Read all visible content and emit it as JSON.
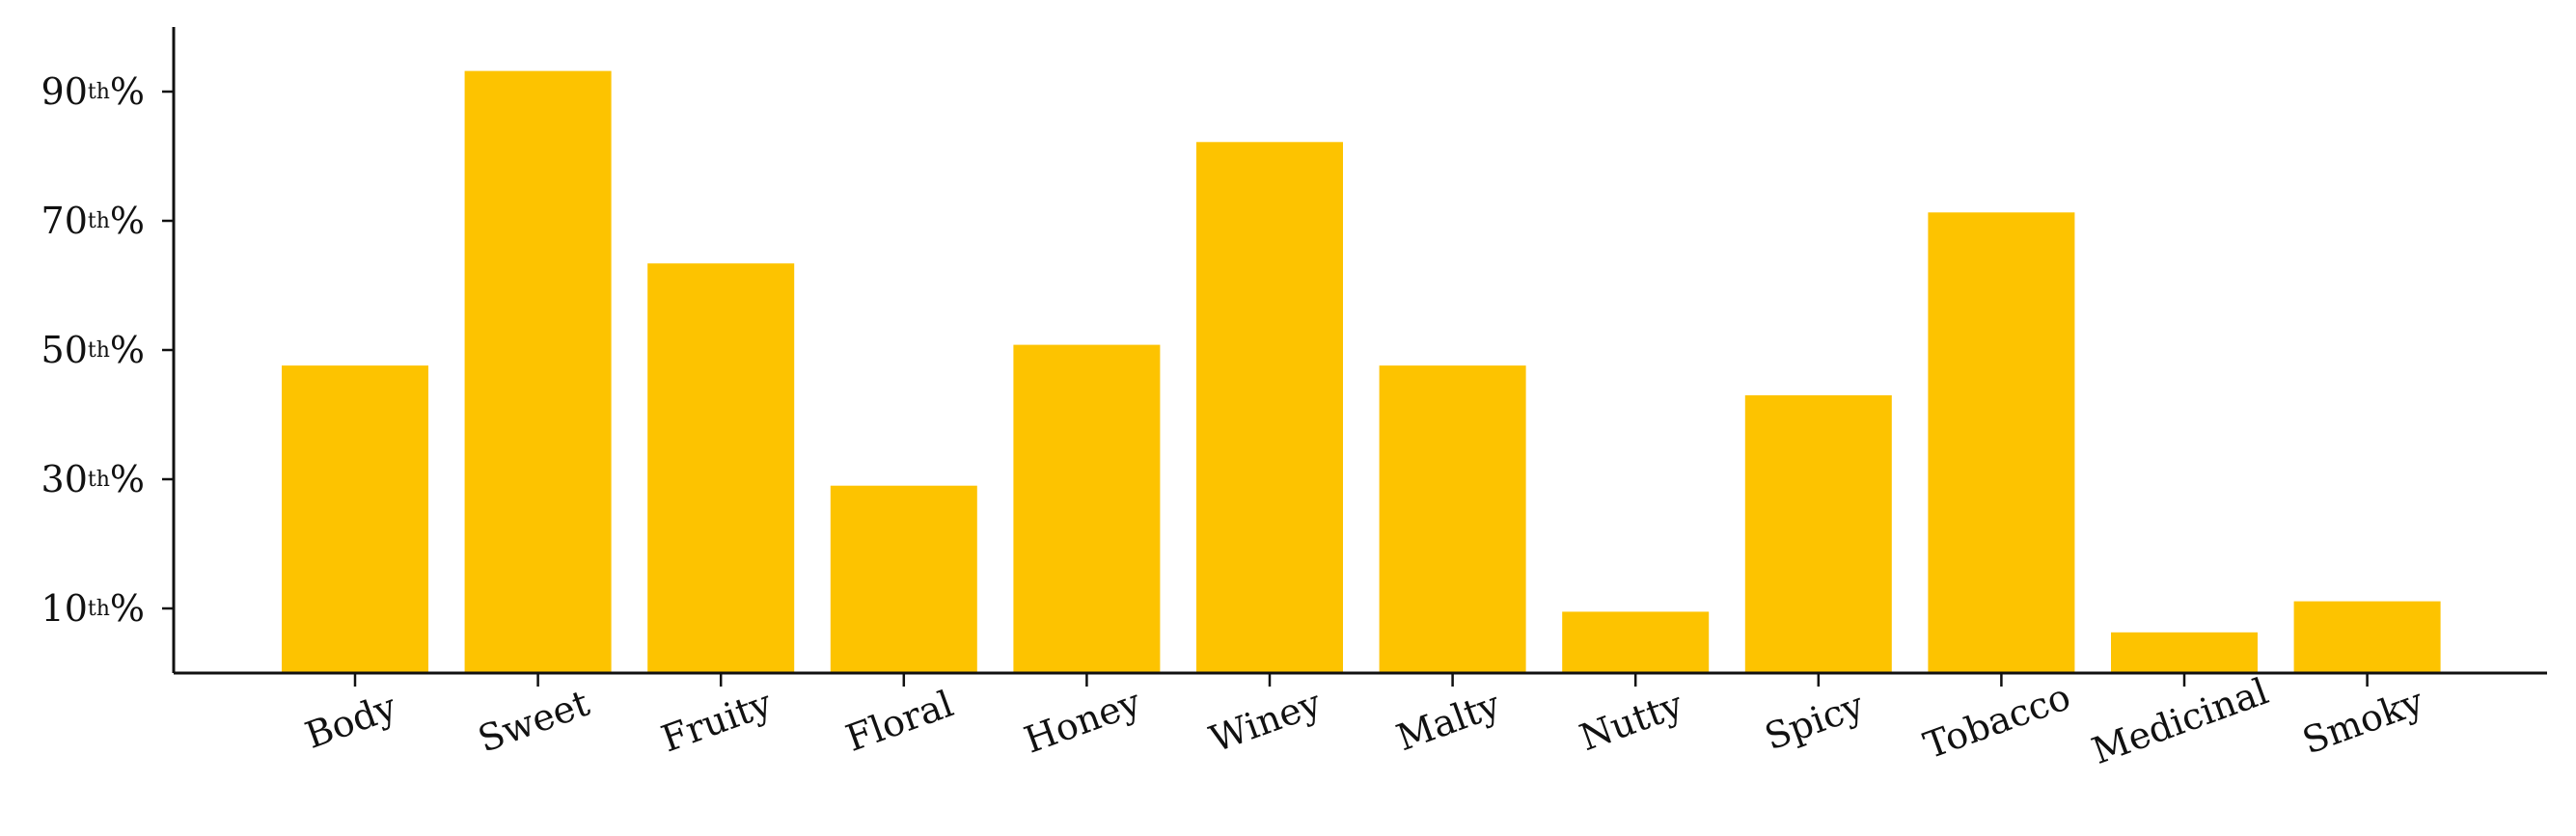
{
  "chart_data": {
    "type": "bar",
    "categories": [
      "Body",
      "Sweet",
      "Fruity",
      "Floral",
      "Honey",
      "Winey",
      "Malty",
      "Nutty",
      "Spicy",
      "Tobacco",
      "Medicinal",
      "Smoky"
    ],
    "values": [
      47.6,
      93.2,
      63.4,
      29.0,
      50.8,
      82.2,
      47.6,
      9.5,
      43.0,
      71.3,
      6.3,
      11.1
    ],
    "yticks": [
      {
        "value": 10,
        "num": "10",
        "sup": "th",
        "suffix": "%"
      },
      {
        "value": 30,
        "num": "30",
        "sup": "th",
        "suffix": "%"
      },
      {
        "value": 50,
        "num": "50",
        "sup": "th",
        "suffix": "%"
      },
      {
        "value": 70,
        "num": "70",
        "sup": "th",
        "suffix": "%"
      },
      {
        "value": 90,
        "num": "90",
        "sup": "th",
        "suffix": "%"
      }
    ],
    "ylim": [
      0,
      100
    ],
    "bar_color": "#FDC300",
    "axis_color": "#111111",
    "title": "",
    "xlabel": "",
    "ylabel": "",
    "grid": false,
    "legend": "none",
    "xtick_rotation_deg": -20
  }
}
